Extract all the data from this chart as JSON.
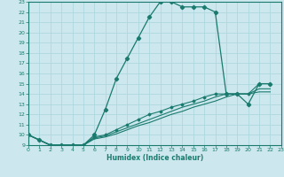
{
  "xlabel": "Humidex (Indice chaleur)",
  "bg_color": "#cce8ee",
  "grid_color": "#aad5dc",
  "line_color": "#1a7a6e",
  "xlim": [
    0,
    23
  ],
  "ylim": [
    9,
    23
  ],
  "xticks": [
    0,
    1,
    2,
    3,
    4,
    5,
    6,
    7,
    8,
    9,
    10,
    11,
    12,
    13,
    14,
    15,
    16,
    17,
    18,
    19,
    20,
    21,
    22,
    23
  ],
  "yticks": [
    9,
    10,
    11,
    12,
    13,
    14,
    15,
    16,
    17,
    18,
    19,
    20,
    21,
    22,
    23
  ],
  "curve_main_x": [
    0,
    1,
    2,
    3,
    4,
    5,
    6,
    7,
    8,
    9,
    10,
    11,
    12,
    13,
    14,
    15,
    16,
    17,
    18,
    19,
    20,
    21,
    22
  ],
  "curve_main_y": [
    10,
    9.5,
    9,
    9,
    9,
    9,
    10,
    12.5,
    15.5,
    17.5,
    19.5,
    21.5,
    23,
    23,
    22.5,
    22.5,
    22.5,
    22,
    14,
    14,
    13,
    15,
    15
  ],
  "curve_a_x": [
    0,
    1,
    2,
    3,
    4,
    5,
    6,
    7,
    8,
    9,
    10,
    11,
    12,
    13,
    14,
    15,
    16,
    17,
    18,
    19,
    20,
    21,
    22
  ],
  "curve_a_y": [
    10,
    9.5,
    9,
    9,
    9,
    9,
    9.8,
    10,
    10.5,
    11,
    11.5,
    12,
    12.3,
    12.7,
    13,
    13.3,
    13.7,
    14,
    14,
    14,
    14,
    15,
    15
  ],
  "curve_b_x": [
    0,
    1,
    2,
    3,
    4,
    5,
    6,
    7,
    8,
    9,
    10,
    11,
    12,
    13,
    14,
    15,
    16,
    17,
    18,
    19,
    20,
    21,
    22
  ],
  "curve_b_y": [
    10,
    9.5,
    9,
    9,
    9,
    9,
    9.7,
    9.9,
    10.3,
    10.7,
    11.1,
    11.5,
    11.9,
    12.3,
    12.7,
    13.0,
    13.3,
    13.7,
    14,
    14,
    14,
    14.5,
    14.5
  ],
  "curve_c_x": [
    0,
    1,
    2,
    3,
    4,
    5,
    6,
    7,
    8,
    9,
    10,
    11,
    12,
    13,
    14,
    15,
    16,
    17,
    18,
    19,
    20,
    21,
    22
  ],
  "curve_c_y": [
    10,
    9.5,
    9,
    9,
    9,
    9,
    9.6,
    9.8,
    10.1,
    10.5,
    10.9,
    11.2,
    11.6,
    12.0,
    12.3,
    12.7,
    13.0,
    13.3,
    13.7,
    14,
    14,
    14.2,
    14.2
  ]
}
